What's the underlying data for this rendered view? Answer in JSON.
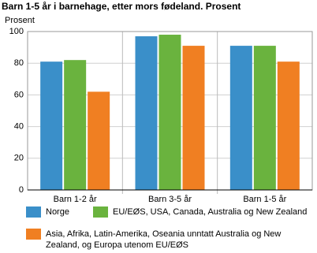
{
  "chart_data": {
    "type": "bar",
    "title": "Barn 1-5 år i barnehage, etter mors fødeland. Prosent",
    "y_label": "Prosent",
    "categories": [
      "Barn 1-2 år",
      "Barn 3-5 år",
      "Barn 1-5 år"
    ],
    "series": [
      {
        "name": "Norge",
        "color": "#3a8fc9",
        "values": [
          81,
          97,
          91
        ]
      },
      {
        "name": "EU/EØS, USA, Canada, Australia og New Zealand",
        "color": "#6ab33e",
        "values": [
          82,
          98,
          91
        ]
      },
      {
        "name": "Asia, Afrika, Latin-Amerika, Oseania unntatt Australia og New Zealand, og Europa utenom EU/EØS",
        "color": "#f07f22",
        "values": [
          62,
          91,
          81
        ]
      }
    ],
    "ylim": [
      0,
      100
    ],
    "yticks": [
      0,
      20,
      40,
      60,
      80,
      100
    ],
    "grid": true
  }
}
